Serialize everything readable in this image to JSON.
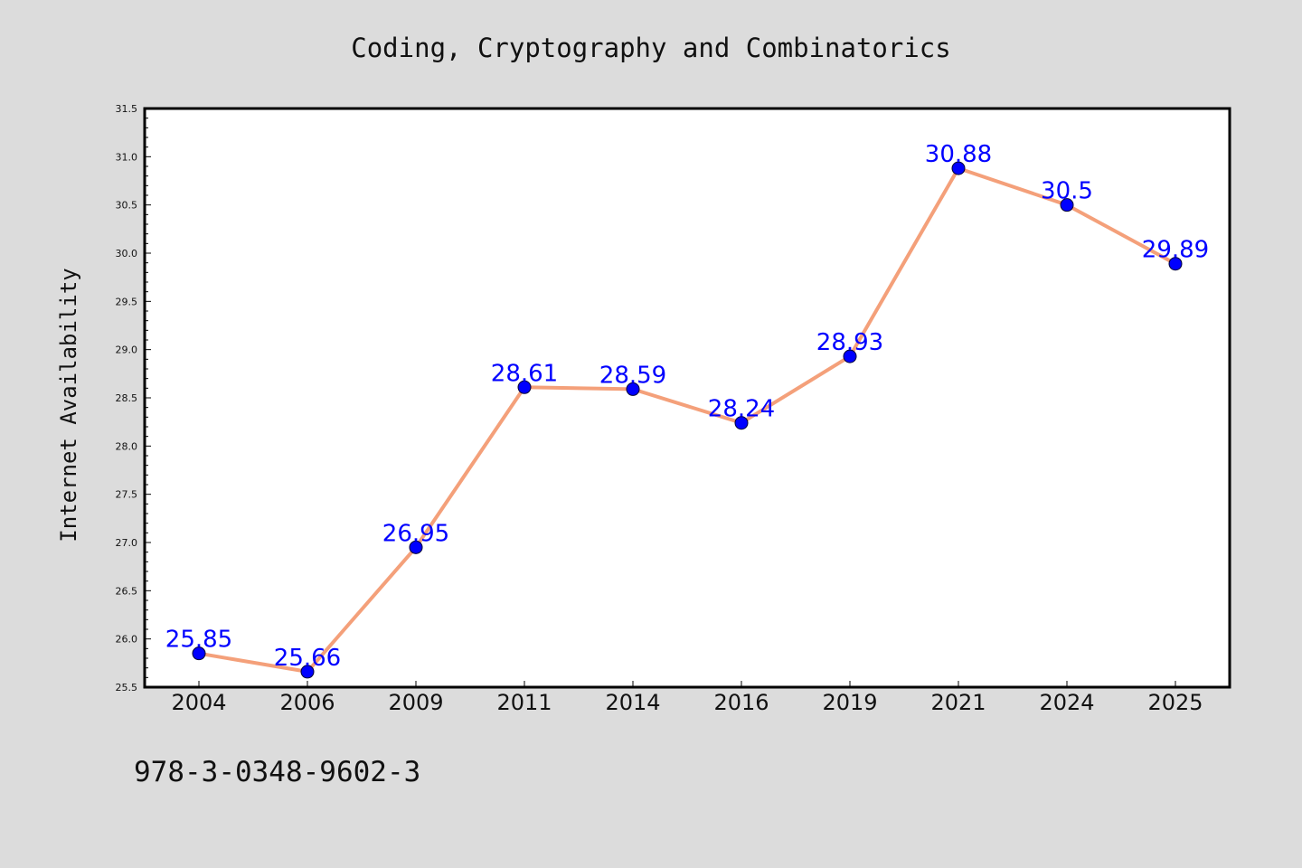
{
  "chart_data": {
    "type": "line",
    "title": "Coding, Cryptography and Combinatorics",
    "xlabel": "",
    "ylabel": "Internet Availability",
    "categories": [
      "2004",
      "2006",
      "2009",
      "2011",
      "2014",
      "2016",
      "2019",
      "2021",
      "2024",
      "2025"
    ],
    "series": [
      {
        "values": [
          25.85,
          25.66,
          26.95,
          28.61,
          28.59,
          28.24,
          28.93,
          30.88,
          30.5,
          29.89
        ],
        "value_labels": [
          "25.85",
          "25.66",
          "26.95",
          "28.61",
          "28.59",
          "28.24",
          "28.93",
          "30.88",
          "30.5",
          "29.89"
        ]
      }
    ],
    "ylim": [
      25.5,
      31.5
    ],
    "yticks": [
      "25.5",
      "26.0",
      "26.5",
      "27.0",
      "27.5",
      "28.0",
      "28.5",
      "29.0",
      "29.5",
      "30.0",
      "30.5",
      "31.0",
      "31.5"
    ],
    "grid": false,
    "legend": "none",
    "colors": {
      "line": "#f4a07a",
      "marker": "#0000ff",
      "data_label": "#0000ff",
      "plot_background": "#ffffff",
      "figure_background": "#dcdcdc",
      "axes": "#000000"
    }
  },
  "footnote": "978-3-0348-9602-3"
}
